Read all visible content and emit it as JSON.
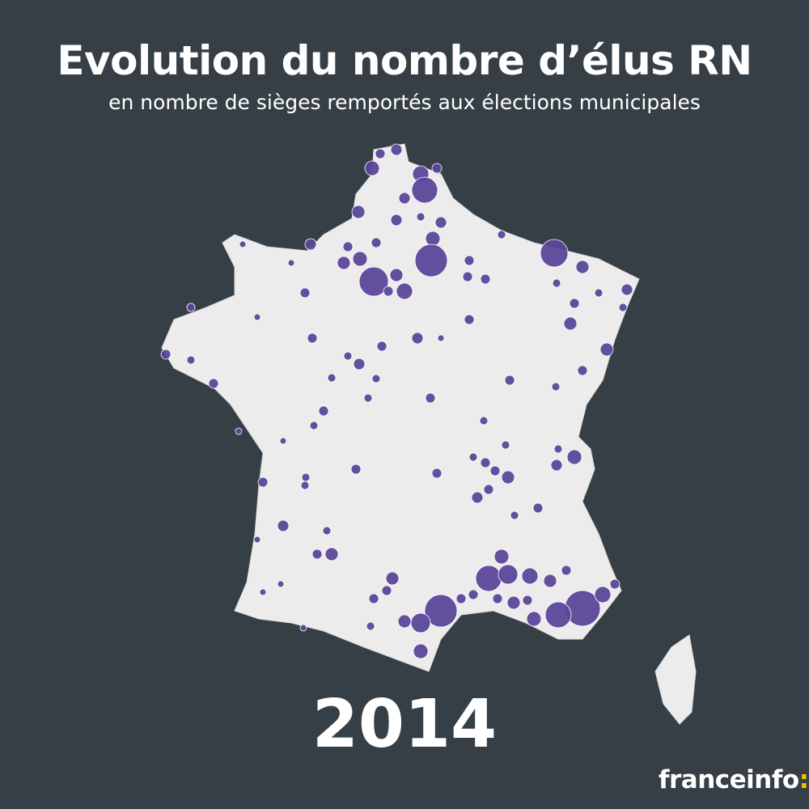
{
  "header": {
    "title": "Evolution du nombre d’élus RN",
    "subtitle": "en nombre de sièges remportés aux élections municipales"
  },
  "map": {
    "region": "France métropolitaine",
    "year": "2014",
    "land_color": "#ececec",
    "border_color": "#ffffff",
    "bubble_color": "#5b479a",
    "background_color": "#353f45"
  },
  "footer": {
    "logo_text": "franceinfo",
    "logo_colon": ":",
    "logo_accent": "#f5c400"
  }
}
